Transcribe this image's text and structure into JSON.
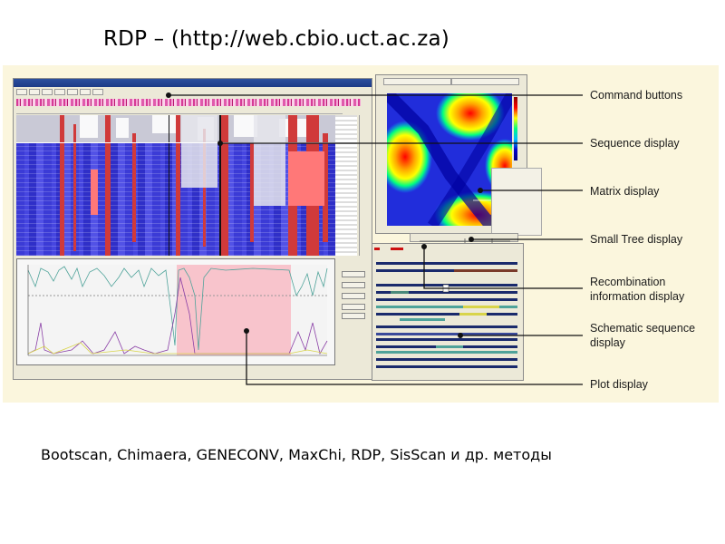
{
  "slide": {
    "title": "RDP – (http://web.cbio.uct.ac.za)",
    "bottom_text": "Bootscan, Chimaera, GENECONV, MaxChi, RDP, SisScan и др. методы"
  },
  "annotations": [
    {
      "id": "command-buttons",
      "label": "Command buttons"
    },
    {
      "id": "sequence-display",
      "label": "Sequence display"
    },
    {
      "id": "matrix-display",
      "label": "Matrix display"
    },
    {
      "id": "small-tree-display",
      "label": "Small Tree display"
    },
    {
      "id": "recombination-info-display",
      "label_lines": [
        "Recombination",
        "information display"
      ]
    },
    {
      "id": "schematic-sequence-display",
      "label_lines": [
        "Schematic sequence",
        "display"
      ]
    },
    {
      "id": "plot-display",
      "label": "Plot display"
    }
  ],
  "colors": {
    "background_panel": "#fbf6dd",
    "sequence_blue": "#3b3bd6",
    "sequence_red": "#d03a3a",
    "highlight_pink": "#f8c4cc",
    "accent_magenta": "#d63a96"
  }
}
